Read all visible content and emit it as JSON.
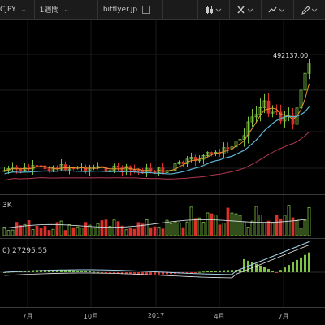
{
  "toolbar": {
    "symbol": "CJPY",
    "interval": "1週間",
    "exchange": "bitflyer.jp",
    "tool_icons": [
      "candle-style-icon",
      "compare-icon",
      "indicator-icon",
      "draw-icon"
    ]
  },
  "main_pane": {
    "last_price_label": "492137.00"
  },
  "volume_pane": {
    "label": "3K"
  },
  "macd_pane": {
    "label_prefix": "0)",
    "value": "27295.55"
  },
  "time_axis": [
    "7月",
    "10月",
    "2017",
    "4月",
    "7月"
  ],
  "colors": {
    "background": "#000000",
    "up": "#7ec244",
    "down": "#d9312b",
    "ma_orange": "#e3942e",
    "ma_blue": "#5fb7d6",
    "ma_red": "#b5394f"
  },
  "chart_data": [
    {
      "type": "candlestick",
      "x": [
        "2016-06",
        "2016-07",
        "2016-08",
        "2016-09",
        "2016-10",
        "2016-11",
        "2016-12",
        "2017-01",
        "2017-02",
        "2017-03",
        "2017-04",
        "2017-05",
        "2017-06",
        "2017-07",
        "2017-08"
      ],
      "close": [
        75000,
        72000,
        65000,
        66000,
        72000,
        82000,
        105000,
        110000,
        130000,
        125000,
        150000,
        260000,
        290000,
        280000,
        492137
      ],
      "last": 492137.0,
      "series": [
        "close",
        "MA short",
        "MA medium",
        "MA long"
      ]
    },
    {
      "type": "bar",
      "name": "volume",
      "label": "3K"
    },
    {
      "type": "bar",
      "name": "MACD",
      "last_value": 27295.55
    }
  ]
}
